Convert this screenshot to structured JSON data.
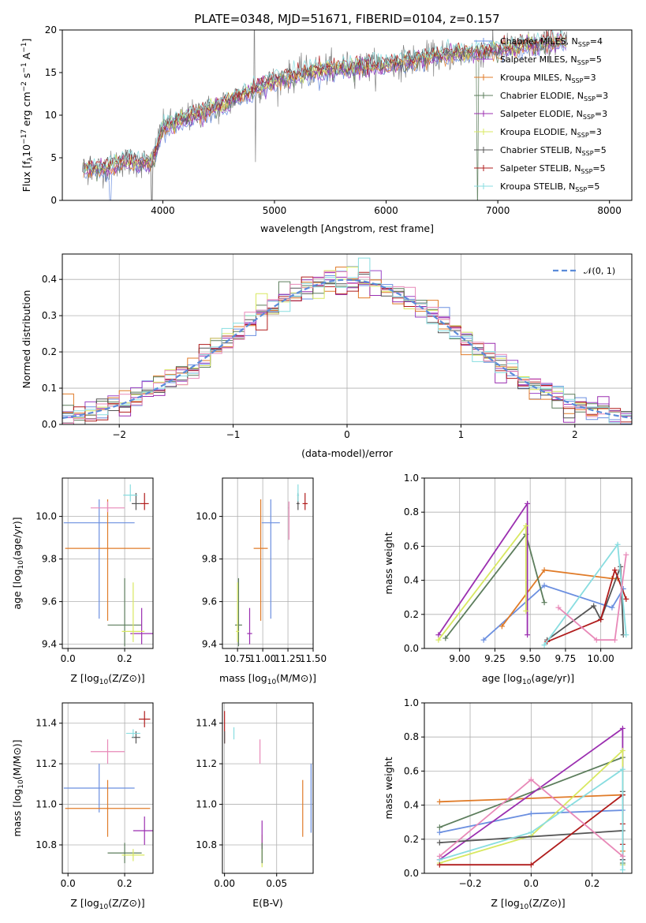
{
  "title": "PLATE=0348, MJD=51671, FIBERID=0104, z=0.157",
  "colors": {
    "chabrier_miles": "#6b8fe0",
    "salpeter_miles": "#9b45c6",
    "kroupa_miles": "#e07b28",
    "chabrier_elodie": "#5c7d5c",
    "salpeter_elodie": "#9b2fb0",
    "kroupa_elodie": "#d8e860",
    "chabrier_stelib": "#555555",
    "salpeter_stelib": "#b01c1c",
    "kroupa_stelib": "#88dde0",
    "extra_pink": "#e889b8",
    "gaussian": "#5b8bd9",
    "spectrum_data": "#808080"
  },
  "chart_data": [
    {
      "type": "line",
      "panel": "spectrum",
      "title": "PLATE=0348, MJD=51671, FIBERID=0104, z=0.157",
      "xlabel": "wavelength [Angstrom, rest frame]",
      "ylabel_main": "Flux [f",
      "ylabel_sub": "λ",
      "ylabel_rest": "10",
      "ylabel_sup": "−17",
      "ylabel_tail": " erg cm",
      "ylabel_sup2": "−2",
      "ylabel_tail2": " s",
      "ylabel_sup3": "−1",
      "ylabel_tail3": " A",
      "ylabel_sup4": "−1",
      "ylabel_end": "]",
      "xlim": [
        3100,
        8200
      ],
      "ylim": [
        0,
        20
      ],
      "xticks": [
        4000,
        5000,
        6000,
        7000,
        8000
      ],
      "yticks": [
        0,
        5,
        10,
        15,
        20
      ],
      "continuum_anchors": [
        [
          3280,
          3.6
        ],
        [
          3500,
          3.8
        ],
        [
          3650,
          4.6
        ],
        [
          3900,
          4.4
        ],
        [
          4000,
          8.5
        ],
        [
          4200,
          9.6
        ],
        [
          4500,
          11.0
        ],
        [
          4800,
          13.0
        ],
        [
          5000,
          14.0
        ],
        [
          5300,
          15.1
        ],
        [
          5600,
          15.6
        ],
        [
          6000,
          15.9
        ],
        [
          6300,
          16.6
        ],
        [
          6600,
          17.2
        ],
        [
          7000,
          17.6
        ],
        [
          7400,
          18.4
        ],
        [
          7600,
          18.6
        ]
      ],
      "series": [
        {
          "name": "Chabrier MILES, N",
          "sub": "SSP",
          "tail": "=4",
          "color": "#6b8fe0"
        },
        {
          "name": "Salpeter MILES, N",
          "sub": "SSP",
          "tail": "=5",
          "color": "#9b45c6"
        },
        {
          "name": "Kroupa MILES, N",
          "sub": "SSP",
          "tail": "=3",
          "color": "#e07b28"
        },
        {
          "name": "Chabrier ELODIE, N",
          "sub": "SSP",
          "tail": "=3",
          "color": "#5c7d5c"
        },
        {
          "name": "Salpeter ELODIE, N",
          "sub": "SSP",
          "tail": "=3",
          "color": "#9b2fb0"
        },
        {
          "name": "Kroupa ELODIE, N",
          "sub": "SSP",
          "tail": "=3",
          "color": "#d8e860"
        },
        {
          "name": "Chabrier STELIB, N",
          "sub": "SSP",
          "tail": "=5",
          "color": "#555555"
        },
        {
          "name": "Salpeter STELIB, N",
          "sub": "SSP",
          "tail": "=5",
          "color": "#b01c1c"
        },
        {
          "name": "Kroupa STELIB, N",
          "sub": "SSP",
          "tail": "=5",
          "color": "#88dde0"
        }
      ]
    },
    {
      "type": "histogram",
      "panel": "residuals",
      "xlabel": "(data-model)/error",
      "ylabel": "Normed distribution",
      "xlim": [
        -2.5,
        2.5
      ],
      "ylim": [
        0,
        0.47
      ],
      "xticks": [
        -2,
        -1,
        0,
        1,
        2
      ],
      "yticks": [
        0.0,
        0.1,
        0.2,
        0.3,
        0.4
      ],
      "bin_width": 0.1,
      "gaussian_label": "𝒩(0, 1)",
      "gaussian_sigma": 1.0
    },
    {
      "type": "scatter",
      "panel": "age-vs-Z",
      "xlabel": "Z [log10(Z/Z⊙)]",
      "ylabel": "age  [log10(age/yr)]",
      "xlim": [
        -0.02,
        0.3
      ],
      "ylim": [
        9.38,
        10.18
      ],
      "xticks": [
        0.0,
        0.2
      ],
      "yticks": [
        9.4,
        9.6,
        9.8,
        10.0
      ],
      "points": [
        {
          "x": 0.11,
          "y": 9.97,
          "xerr": 0.25,
          "yerr_lo": 0.45,
          "yerr_hi": 0.11,
          "color": "#6b8fe0"
        },
        {
          "x": 0.14,
          "y": 9.85,
          "xerr": 0.3,
          "yerr_lo": 0.34,
          "yerr_hi": 0.23,
          "color": "#e07b28"
        },
        {
          "x": 0.2,
          "y": 9.49,
          "xerr": 0.12,
          "yerr_lo": 0.1,
          "yerr_hi": 0.22,
          "color": "#5c7d5c"
        },
        {
          "x": 0.26,
          "y": 9.45,
          "xerr": 0.08,
          "yerr_lo": 0.05,
          "yerr_hi": 0.12,
          "color": "#9b2fb0"
        },
        {
          "x": 0.23,
          "y": 9.46,
          "xerr": 0.08,
          "yerr_lo": 0.05,
          "yerr_hi": 0.23,
          "color": "#d8e860"
        },
        {
          "x": 0.24,
          "y": 10.06,
          "xerr": 0.03,
          "yerr_lo": 0.03,
          "yerr_hi": 0.05,
          "color": "#555555"
        },
        {
          "x": 0.27,
          "y": 10.06,
          "xerr": 0.03,
          "yerr_lo": 0.03,
          "yerr_hi": 0.05,
          "color": "#b01c1c"
        },
        {
          "x": 0.22,
          "y": 10.1,
          "xerr": 0.05,
          "yerr_lo": 0.03,
          "yerr_hi": 0.05,
          "color": "#88dde0"
        },
        {
          "x": 0.14,
          "y": 10.04,
          "xerr": 0.12,
          "yerr_lo": 0.02,
          "yerr_hi": 0.03,
          "color": "#e889b8"
        }
      ]
    },
    {
      "type": "scatter",
      "panel": "age-vs-mass",
      "xlabel": "mass [log10(M/M⊙)]",
      "xlim": [
        10.6,
        11.5
      ],
      "ylim": [
        9.38,
        10.18
      ],
      "xticks": [
        10.75,
        11.0,
        11.25,
        11.5
      ],
      "yticks": [
        9.4,
        9.6,
        9.8,
        10.0
      ],
      "points": [
        {
          "x": 11.08,
          "y": 9.97,
          "xerr": 0.18,
          "yerr_lo": 0.45,
          "yerr_hi": 0.11,
          "color": "#6b8fe0"
        },
        {
          "x": 10.98,
          "y": 9.85,
          "xerr": 0.14,
          "yerr_lo": 0.34,
          "yerr_hi": 0.23,
          "color": "#e07b28"
        },
        {
          "x": 10.76,
          "y": 9.49,
          "xerr": 0.07,
          "yerr_lo": 0.1,
          "yerr_hi": 0.22,
          "color": "#5c7d5c"
        },
        {
          "x": 10.87,
          "y": 9.45,
          "xerr": 0.05,
          "yerr_lo": 0.05,
          "yerr_hi": 0.12,
          "color": "#9b2fb0"
        },
        {
          "x": 10.75,
          "y": 9.46,
          "xerr": 0.03,
          "yerr_lo": 0.05,
          "yerr_hi": 0.23,
          "color": "#d8e860"
        },
        {
          "x": 11.35,
          "y": 10.06,
          "xerr": 0.03,
          "yerr_lo": 0.03,
          "yerr_hi": 0.05,
          "color": "#555555"
        },
        {
          "x": 11.42,
          "y": 10.06,
          "xerr": 0.05,
          "yerr_lo": 0.03,
          "yerr_hi": 0.05,
          "color": "#b01c1c"
        },
        {
          "x": 11.35,
          "y": 10.1,
          "xerr": 0.02,
          "yerr_lo": 0.03,
          "yerr_hi": 0.05,
          "color": "#88dde0"
        },
        {
          "x": 11.26,
          "y": 10.04,
          "xerr": 0.01,
          "yerr_lo": 0.15,
          "yerr_hi": 0.03,
          "color": "#e889b8"
        }
      ]
    },
    {
      "type": "line",
      "panel": "mass-weight-vs-age",
      "xlabel": "age  [log10(age/yr)]",
      "ylabel": "mass weight",
      "xlim": [
        8.75,
        10.22
      ],
      "ylim": [
        0,
        1.0
      ],
      "xticks": [
        9.0,
        9.25,
        9.5,
        9.75,
        10.0
      ],
      "yticks": [
        0.0,
        0.2,
        0.4,
        0.6,
        0.8,
        1.0
      ],
      "series": [
        {
          "color": "#6b8fe0",
          "points": [
            [
              9.17,
              0.05
            ],
            [
              9.6,
              0.37
            ],
            [
              10.08,
              0.24
            ],
            [
              10.16,
              0.35
            ]
          ]
        },
        {
          "color": "#e07b28",
          "points": [
            [
              9.3,
              0.13
            ],
            [
              9.6,
              0.46
            ],
            [
              10.08,
              0.41
            ],
            [
              10.12,
              0.41
            ]
          ]
        },
        {
          "color": "#5c7d5c",
          "points": [
            [
              8.9,
              0.06
            ],
            [
              9.47,
              0.67
            ],
            [
              9.6,
              0.27
            ]
          ]
        },
        {
          "color": "#9b2fb0",
          "points": [
            [
              8.85,
              0.08
            ],
            [
              9.48,
              0.85
            ],
            [
              9.48,
              0.08
            ]
          ]
        },
        {
          "color": "#d8e860",
          "points": [
            [
              8.85,
              0.05
            ],
            [
              9.47,
              0.72
            ],
            [
              9.47,
              0.22
            ]
          ]
        },
        {
          "color": "#555555",
          "points": [
            [
              9.62,
              0.05
            ],
            [
              9.95,
              0.25
            ],
            [
              10.0,
              0.17
            ],
            [
              10.14,
              0.48
            ],
            [
              10.16,
              0.08
            ]
          ]
        },
        {
          "color": "#b01c1c",
          "points": [
            [
              9.62,
              0.04
            ],
            [
              10.0,
              0.17
            ],
            [
              10.1,
              0.46
            ],
            [
              10.18,
              0.29
            ]
          ]
        },
        {
          "color": "#88dde0",
          "points": [
            [
              9.6,
              0.02
            ],
            [
              10.12,
              0.61
            ],
            [
              10.18,
              0.08
            ]
          ]
        },
        {
          "color": "#e889b8",
          "points": [
            [
              9.7,
              0.24
            ],
            [
              9.97,
              0.05
            ],
            [
              10.1,
              0.05
            ],
            [
              10.18,
              0.55
            ]
          ]
        }
      ]
    },
    {
      "type": "scatter",
      "panel": "mass-vs-Z",
      "xlabel": "Z [log10(Z/Z⊙)]",
      "ylabel": "mass [log10(M/M⊙)]",
      "xlim": [
        -0.02,
        0.3
      ],
      "ylim": [
        10.66,
        11.5
      ],
      "xticks": [
        0.0,
        0.2
      ],
      "yticks": [
        10.8,
        11.0,
        11.2,
        11.4
      ],
      "points": [
        {
          "x": 0.11,
          "y": 11.08,
          "xerr": 0.25,
          "yerr": 0.12,
          "color": "#6b8fe0"
        },
        {
          "x": 0.14,
          "y": 10.98,
          "xerr": 0.3,
          "yerr": 0.14,
          "color": "#e07b28"
        },
        {
          "x": 0.2,
          "y": 10.76,
          "xerr": 0.12,
          "yerr": 0.05,
          "color": "#5c7d5c"
        },
        {
          "x": 0.27,
          "y": 10.87,
          "xerr": 0.08,
          "yerr": 0.07,
          "color": "#9b2fb0"
        },
        {
          "x": 0.23,
          "y": 10.75,
          "xerr": 0.08,
          "yerr": 0.03,
          "color": "#d8e860"
        },
        {
          "x": 0.24,
          "y": 11.33,
          "xerr": 0.03,
          "yerr": 0.03,
          "color": "#555555"
        },
        {
          "x": 0.27,
          "y": 11.42,
          "xerr": 0.04,
          "yerr": 0.04,
          "color": "#b01c1c"
        },
        {
          "x": 0.23,
          "y": 11.35,
          "xerr": 0.05,
          "yerr": 0.02,
          "color": "#88dde0"
        },
        {
          "x": 0.14,
          "y": 11.26,
          "xerr": 0.12,
          "yerr": 0.06,
          "color": "#e889b8"
        }
      ]
    },
    {
      "type": "scatter",
      "panel": "mass-vs-EBV",
      "xlabel": "E(B-V)",
      "xlim": [
        -0.002,
        0.085
      ],
      "ylim": [
        10.66,
        11.5
      ],
      "xticks": [
        0.0,
        0.05
      ],
      "yticks": [
        10.8,
        11.0,
        11.2,
        11.4
      ],
      "points": [
        {
          "x": 0.0,
          "y": 11.38,
          "yerr": 0.08,
          "color": "#b01c1c"
        },
        {
          "x": 0.0,
          "y": 11.33,
          "yerr": 0.03,
          "color": "#555555"
        },
        {
          "x": 0.009,
          "y": 11.35,
          "yerr": 0.03,
          "color": "#88dde0"
        },
        {
          "x": 0.034,
          "y": 11.26,
          "yerr": 0.06,
          "color": "#e889b8"
        },
        {
          "x": 0.036,
          "y": 10.77,
          "yerr": 0.08,
          "color": "#d8e860"
        },
        {
          "x": 0.036,
          "y": 10.85,
          "yerr": 0.07,
          "color": "#9b2fb0"
        },
        {
          "x": 0.036,
          "y": 10.76,
          "yerr": 0.05,
          "color": "#5c7d5c"
        },
        {
          "x": 0.075,
          "y": 10.98,
          "yerr": 0.14,
          "color": "#e07b28"
        },
        {
          "x": 0.083,
          "y": 11.03,
          "yerr": 0.17,
          "color": "#6b8fe0"
        }
      ]
    },
    {
      "type": "line",
      "panel": "mass-weight-vs-Z",
      "xlabel": "Z [log10(Z/Z⊙)]",
      "ylabel": "mass weight",
      "xlim": [
        -0.35,
        0.33
      ],
      "ylim": [
        0,
        1.0
      ],
      "xticks": [
        -0.2,
        0.0,
        0.2
      ],
      "yticks": [
        0.0,
        0.2,
        0.4,
        0.6,
        0.8,
        1.0
      ],
      "series": [
        {
          "color": "#6b8fe0",
          "points": [
            [
              -0.3,
              0.24
            ],
            [
              0.0,
              0.35
            ],
            [
              0.3,
              0.37
            ],
            [
              0.3,
              0.05
            ]
          ]
        },
        {
          "color": "#e07b28",
          "points": [
            [
              -0.3,
              0.42
            ],
            [
              0.3,
              0.46
            ],
            [
              0.3,
              0.13
            ]
          ]
        },
        {
          "color": "#5c7d5c",
          "points": [
            [
              -0.3,
              0.27
            ],
            [
              0.3,
              0.68
            ],
            [
              0.3,
              0.06
            ]
          ]
        },
        {
          "color": "#9b2fb0",
          "points": [
            [
              -0.3,
              0.08
            ],
            [
              0.3,
              0.85
            ],
            [
              0.3,
              0.08
            ]
          ]
        },
        {
          "color": "#d8e860",
          "points": [
            [
              -0.3,
              0.06
            ],
            [
              0.0,
              0.22
            ],
            [
              0.3,
              0.72
            ],
            [
              0.3,
              0.05
            ]
          ]
        },
        {
          "color": "#555555",
          "points": [
            [
              -0.3,
              0.18
            ],
            [
              0.3,
              0.25
            ],
            [
              0.3,
              0.08
            ],
            [
              0.3,
              0.48
            ]
          ]
        },
        {
          "color": "#b01c1c",
          "points": [
            [
              -0.3,
              0.05
            ],
            [
              0.0,
              0.05
            ],
            [
              0.3,
              0.46
            ],
            [
              0.3,
              0.29
            ],
            [
              0.3,
              0.17
            ]
          ]
        },
        {
          "color": "#88dde0",
          "points": [
            [
              -0.3,
              0.08
            ],
            [
              0.0,
              0.24
            ],
            [
              0.3,
              0.61
            ],
            [
              0.3,
              0.02
            ]
          ]
        },
        {
          "color": "#e889b8",
          "points": [
            [
              -0.3,
              0.1
            ],
            [
              0.0,
              0.55
            ],
            [
              0.3,
              0.1
            ]
          ]
        }
      ]
    }
  ]
}
